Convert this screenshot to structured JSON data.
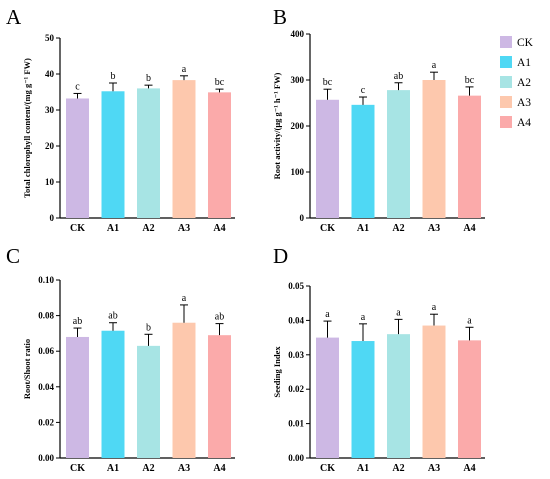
{
  "legend": {
    "entries": [
      {
        "label": "CK",
        "color": "#cdb8e4"
      },
      {
        "label": "A1",
        "color": "#4fd8f4"
      },
      {
        "label": "A2",
        "color": "#a7e4e4"
      },
      {
        "label": "A3",
        "color": "#fdc8ad"
      },
      {
        "label": "A4",
        "color": "#fbaaaa"
      }
    ]
  },
  "chart_data": [
    {
      "type": "bar",
      "panel": "A",
      "categories": [
        "CK",
        "A1",
        "A2",
        "A3",
        "A4"
      ],
      "values": [
        33.2,
        35.2,
        36.0,
        38.3,
        34.9
      ],
      "errors": [
        1.4,
        2.3,
        0.9,
        1.2,
        0.9
      ],
      "significance": [
        "c",
        "b",
        "b",
        "a",
        "bc"
      ],
      "ylabel": "Total chlorophyll content/(mg g⁻¹ FW)",
      "ylim": [
        0,
        50
      ],
      "yticks": [
        0,
        10,
        20,
        30,
        40,
        50
      ],
      "ytick_labels": [
        "0",
        "10",
        "20",
        "30",
        "40",
        "50"
      ],
      "colors": [
        "#cdb8e4",
        "#4fd8f4",
        "#a7e4e4",
        "#fdc8ad",
        "#fbaaaa"
      ]
    },
    {
      "type": "bar",
      "panel": "B",
      "categories": [
        "CK",
        "A1",
        "A2",
        "A3",
        "A4"
      ],
      "values": [
        257,
        246,
        278,
        300,
        266
      ],
      "errors": [
        23,
        17,
        16,
        17,
        19
      ],
      "significance": [
        "bc",
        "c",
        "ab",
        "a",
        "bc"
      ],
      "ylabel": "Root activity/(μg g⁻¹ h⁻¹ FW)",
      "ylim": [
        0,
        400
      ],
      "yticks": [
        0,
        100,
        200,
        300,
        400
      ],
      "ytick_labels": [
        "0",
        "100",
        "200",
        "300",
        "400"
      ],
      "colors": [
        "#cdb8e4",
        "#4fd8f4",
        "#a7e4e4",
        "#fdc8ad",
        "#fbaaaa"
      ]
    },
    {
      "type": "bar",
      "panel": "C",
      "categories": [
        "CK",
        "A1",
        "A2",
        "A3",
        "A4"
      ],
      "values": [
        0.068,
        0.0715,
        0.063,
        0.076,
        0.069
      ],
      "errors": [
        0.005,
        0.0045,
        0.0065,
        0.01,
        0.0065
      ],
      "significance": [
        "ab",
        "ab",
        "b",
        "a",
        "ab"
      ],
      "ylabel": "Root/Shoot ratio",
      "ylim": [
        0,
        0.1
      ],
      "yticks": [
        0,
        0.02,
        0.04,
        0.06,
        0.08,
        0.1
      ],
      "ytick_labels": [
        "0.00",
        "0.02",
        "0.04",
        "0.06",
        "0.08",
        "0.10"
      ],
      "colors": [
        "#cdb8e4",
        "#4fd8f4",
        "#a7e4e4",
        "#fdc8ad",
        "#fbaaaa"
      ]
    },
    {
      "type": "bar",
      "panel": "D",
      "categories": [
        "CK",
        "A1",
        "A2",
        "A3",
        "A4"
      ],
      "values": [
        0.035,
        0.034,
        0.036,
        0.0385,
        0.0342
      ],
      "errors": [
        0.0048,
        0.005,
        0.0043,
        0.0033,
        0.0038
      ],
      "significance": [
        "a",
        "a",
        "a",
        "a",
        "a"
      ],
      "ylabel": "Seeding Index",
      "ylim": [
        0,
        0.05
      ],
      "yticks": [
        0,
        0.01,
        0.02,
        0.03,
        0.04,
        0.05
      ],
      "ytick_labels": [
        "0.00",
        "0.01",
        "0.02",
        "0.03",
        "0.04",
        "0.05"
      ],
      "colors": [
        "#cdb8e4",
        "#4fd8f4",
        "#a7e4e4",
        "#fdc8ad",
        "#fbaaaa"
      ]
    }
  ]
}
